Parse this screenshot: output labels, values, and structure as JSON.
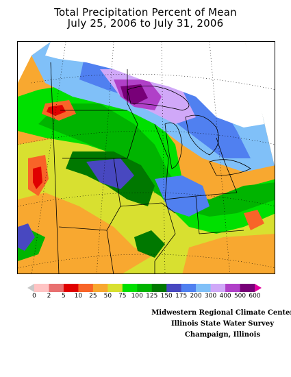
{
  "header": {
    "title_line1": "Total Precipitation Percent of Mean",
    "title_line2": "July 25, 2006 to July 31, 2006"
  },
  "legend": {
    "ticks": [
      "0",
      "2",
      "5",
      "10",
      "25",
      "50",
      "75",
      "100",
      "125",
      "150",
      "175",
      "200",
      "300",
      "400",
      "500",
      "600"
    ],
    "colors": {
      "below_0": "#c8c8c8",
      "0-2": "#ffc4c4",
      "2-5": "#e87070",
      "5-10": "#e00000",
      "10-25": "#f86428",
      "25-50": "#f8a830",
      "50-75": "#d8e030",
      "75-100": "#00e000",
      "100-125": "#00b400",
      "125-150": "#007800",
      "150-175": "#4848c0",
      "175-200": "#5080f0",
      "200-300": "#80c0f8",
      "300-400": "#d0a8f8",
      "400-500": "#b040c8",
      "500-600": "#780078",
      "above_600": "#e000a0"
    }
  },
  "credits": {
    "line1": "Midwestern Regional Climate Center",
    "line2": "Illinois State Water Survey",
    "line3": "Champaign, Illinois"
  }
}
